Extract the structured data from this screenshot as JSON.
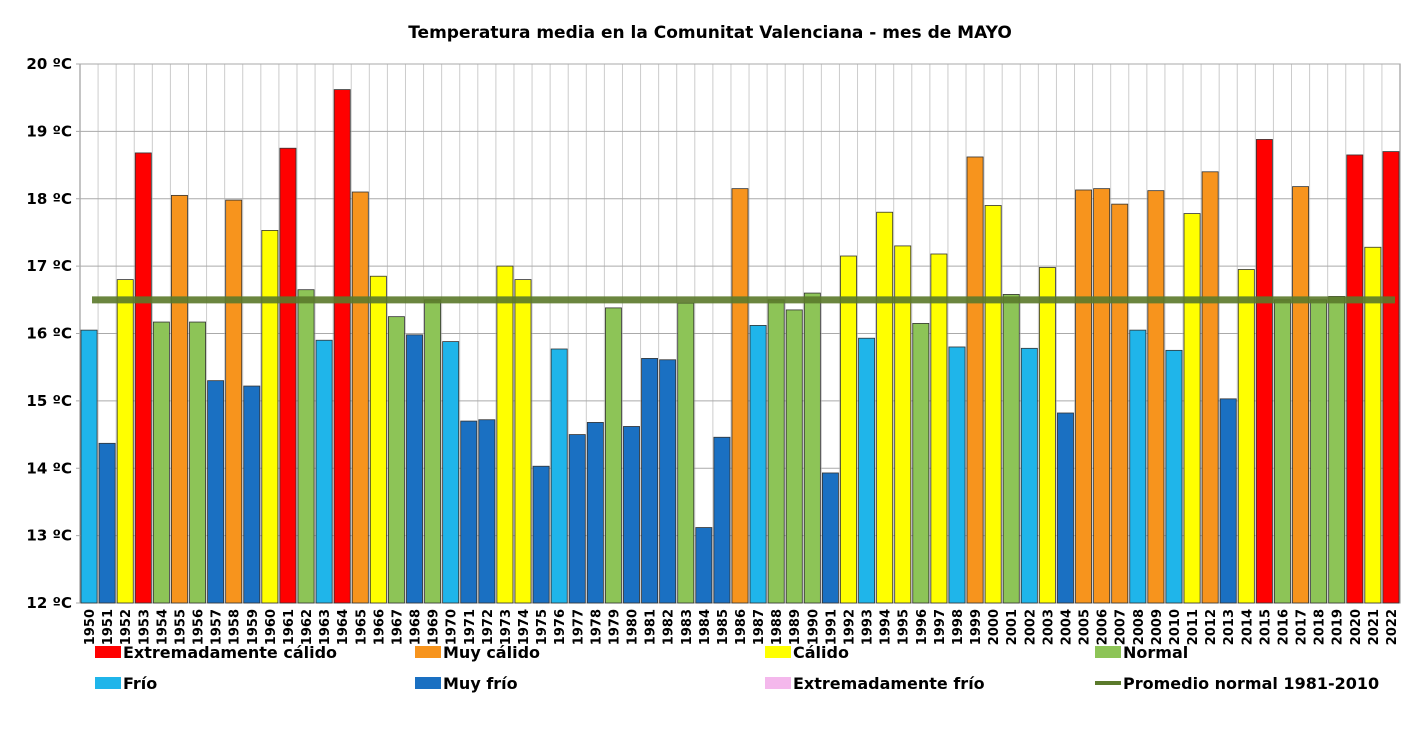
{
  "chart_data": {
    "type": "bar",
    "title": "Temperatura media en la Comunitat Valenciana - mes de MAYO",
    "categories": [
      "1950",
      "1951",
      "1952",
      "1953",
      "1954",
      "1955",
      "1956",
      "1957",
      "1958",
      "1959",
      "1960",
      "1961",
      "1962",
      "1963",
      "1964",
      "1965",
      "1966",
      "1967",
      "1968",
      "1969",
      "1970",
      "1971",
      "1972",
      "1973",
      "1974",
      "1975",
      "1976",
      "1977",
      "1978",
      "1979",
      "1980",
      "1981",
      "1982",
      "1983",
      "1984",
      "1985",
      "1986",
      "1987",
      "1988",
      "1989",
      "1990",
      "1991",
      "1992",
      "1993",
      "1994",
      "1995",
      "1996",
      "1997",
      "1998",
      "1999",
      "2000",
      "2001",
      "2002",
      "2003",
      "2004",
      "2005",
      "2006",
      "2007",
      "2008",
      "2009",
      "2010",
      "2011",
      "2012",
      "2013",
      "2014",
      "2015",
      "2016",
      "2017",
      "2018",
      "2019",
      "2020",
      "2021",
      "2022"
    ],
    "series": [
      {
        "name": "Extremadamente cálido",
        "color": "#ff0000",
        "values": [
          null,
          null,
          null,
          18.68,
          null,
          null,
          null,
          null,
          null,
          null,
          null,
          18.75,
          null,
          null,
          19.62,
          null,
          null,
          null,
          null,
          null,
          null,
          null,
          null,
          null,
          null,
          null,
          null,
          null,
          null,
          null,
          null,
          null,
          null,
          null,
          null,
          null,
          null,
          null,
          null,
          null,
          null,
          null,
          null,
          null,
          null,
          null,
          null,
          null,
          null,
          null,
          null,
          null,
          null,
          null,
          null,
          null,
          null,
          null,
          null,
          null,
          null,
          null,
          null,
          null,
          null,
          18.88,
          null,
          null,
          null,
          null,
          18.65,
          null,
          18.7
        ]
      },
      {
        "name": "Muy cálido",
        "color": "#f7941d",
        "values": [
          null,
          null,
          null,
          null,
          null,
          18.05,
          null,
          null,
          17.98,
          null,
          null,
          null,
          null,
          null,
          null,
          18.1,
          null,
          null,
          null,
          null,
          null,
          null,
          null,
          null,
          null,
          null,
          null,
          null,
          null,
          null,
          null,
          null,
          null,
          null,
          null,
          null,
          18.15,
          null,
          null,
          null,
          null,
          null,
          null,
          null,
          null,
          null,
          null,
          null,
          null,
          18.62,
          null,
          null,
          null,
          null,
          null,
          18.13,
          18.15,
          17.92,
          null,
          18.12,
          null,
          null,
          18.4,
          null,
          null,
          null,
          null,
          18.18,
          null,
          null,
          null,
          null,
          null
        ]
      },
      {
        "name": "Cálido",
        "color": "#ffff00",
        "values": [
          null,
          null,
          16.8,
          null,
          null,
          null,
          null,
          null,
          null,
          null,
          17.53,
          null,
          null,
          null,
          null,
          null,
          16.85,
          null,
          null,
          null,
          null,
          null,
          null,
          17.0,
          16.8,
          null,
          null,
          null,
          null,
          null,
          null,
          null,
          null,
          null,
          null,
          null,
          null,
          null,
          null,
          null,
          null,
          null,
          17.15,
          null,
          17.8,
          17.3,
          null,
          17.18,
          null,
          null,
          17.9,
          null,
          null,
          16.98,
          null,
          null,
          null,
          null,
          null,
          null,
          null,
          17.78,
          null,
          null,
          16.95,
          null,
          null,
          null,
          null,
          null,
          null,
          17.28,
          null
        ]
      },
      {
        "name": "Normal",
        "color": "#8dc457",
        "values": [
          null,
          null,
          null,
          null,
          16.17,
          null,
          16.17,
          null,
          null,
          null,
          null,
          null,
          16.65,
          null,
          null,
          null,
          null,
          16.25,
          null,
          16.5,
          null,
          null,
          null,
          null,
          null,
          null,
          null,
          null,
          null,
          16.38,
          null,
          null,
          null,
          16.45,
          null,
          null,
          null,
          null,
          16.5,
          16.35,
          16.6,
          null,
          null,
          null,
          null,
          null,
          16.15,
          null,
          null,
          null,
          null,
          16.58,
          null,
          null,
          null,
          null,
          null,
          null,
          null,
          null,
          null,
          null,
          null,
          null,
          null,
          null,
          16.5,
          null,
          16.5,
          16.55,
          null,
          null,
          null
        ]
      },
      {
        "name": "Frío",
        "color": "#1fb5ea",
        "values": [
          16.05,
          null,
          null,
          null,
          null,
          null,
          null,
          null,
          null,
          null,
          null,
          null,
          null,
          15.9,
          null,
          null,
          null,
          null,
          null,
          null,
          15.88,
          null,
          null,
          null,
          null,
          null,
          15.77,
          null,
          null,
          null,
          null,
          null,
          null,
          null,
          null,
          null,
          null,
          16.12,
          null,
          null,
          null,
          null,
          null,
          15.93,
          null,
          null,
          null,
          null,
          15.8,
          null,
          null,
          null,
          15.78,
          null,
          null,
          null,
          null,
          null,
          16.05,
          null,
          15.75,
          null,
          null,
          null,
          null,
          null,
          null,
          null,
          null,
          null,
          null,
          null,
          null
        ]
      },
      {
        "name": "Muy frío",
        "color": "#1a70c2",
        "values": [
          null,
          14.37,
          null,
          null,
          null,
          null,
          null,
          15.3,
          null,
          15.22,
          null,
          null,
          null,
          null,
          null,
          null,
          null,
          null,
          15.98,
          null,
          null,
          14.7,
          14.72,
          null,
          null,
          14.03,
          null,
          14.5,
          14.68,
          null,
          14.62,
          15.63,
          15.61,
          null,
          13.12,
          14.46,
          null,
          null,
          null,
          null,
          null,
          13.93,
          null,
          null,
          null,
          null,
          null,
          null,
          null,
          null,
          null,
          null,
          null,
          null,
          14.82,
          null,
          null,
          null,
          null,
          null,
          null,
          null,
          null,
          15.03,
          null,
          null,
          null,
          null,
          null,
          null,
          null,
          null,
          null
        ]
      },
      {
        "name": "Extremadamente frío",
        "color": "#f4b8ec",
        "values": [
          null,
          null,
          null,
          null,
          null,
          null,
          null,
          null,
          null,
          null,
          null,
          null,
          null,
          null,
          null,
          null,
          null,
          null,
          null,
          null,
          null,
          null,
          null,
          null,
          null,
          null,
          null,
          null,
          null,
          null,
          null,
          null,
          null,
          null,
          null,
          null,
          null,
          null,
          null,
          null,
          null,
          null,
          null,
          null,
          null,
          null,
          null,
          null,
          null,
          null,
          null,
          null,
          null,
          null,
          null,
          null,
          null,
          null,
          null,
          null,
          null,
          null,
          null,
          null,
          null,
          null,
          null,
          null,
          null,
          null,
          null,
          null,
          null
        ]
      }
    ],
    "reference_line": {
      "name": "Promedio normal 1981-2010",
      "value": 16.5,
      "color": "#5b7a2b"
    },
    "ylim": [
      12,
      20
    ],
    "yticks": [
      {
        "value": 12,
        "label": "12 ºC"
      },
      {
        "value": 13,
        "label": "13 ºC"
      },
      {
        "value": 14,
        "label": "14 ºC"
      },
      {
        "value": 15,
        "label": "15 ºC"
      },
      {
        "value": 16,
        "label": "16 ºC"
      },
      {
        "value": 17,
        "label": "17 ºC"
      },
      {
        "value": 18,
        "label": "18 ºC"
      },
      {
        "value": 19,
        "label": "19 ºC"
      },
      {
        "value": 20,
        "label": "20 ºC"
      }
    ],
    "grid": true,
    "legend": "bottom"
  }
}
